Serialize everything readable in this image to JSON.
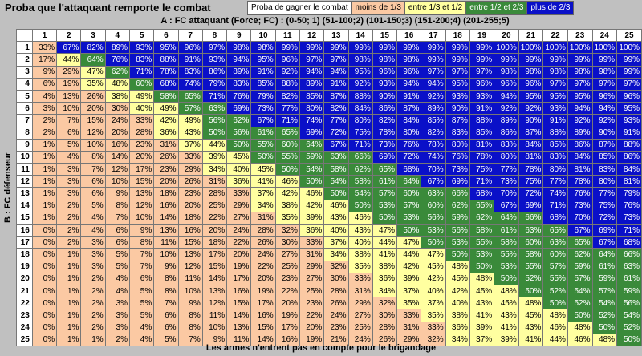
{
  "title": "Proba que l'attaquant remporte le combat",
  "legend": {
    "label": "Proba de gagner le combat",
    "items": [
      {
        "label": "moins de 1/3",
        "color": "#fbc9a3"
      },
      {
        "label": "entre 1/3 et 1/2",
        "color": "#ffffa0"
      },
      {
        "label": "entre 1/2 et 2/3",
        "color": "#3a8a3a"
      },
      {
        "label": "plus de 2/3",
        "color": "#0a10c8"
      }
    ]
  },
  "column_axis_title": "A : FC attaquant (Force; FC) : (0-50; 1) (51-100;2) (101-150;3) (151-200;4) (201-255;5)",
  "row_axis_title": "B : FC défenseur",
  "footer": "Les armes n'entrent pas en compte pour le brigandage",
  "watermark": "",
  "columns": [
    1,
    2,
    3,
    4,
    5,
    6,
    7,
    8,
    9,
    10,
    11,
    12,
    13,
    14,
    15,
    16,
    17,
    18,
    19,
    20,
    21,
    22,
    23,
    24,
    25
  ],
  "rows": [
    1,
    2,
    3,
    4,
    5,
    6,
    7,
    8,
    9,
    10,
    11,
    12,
    13,
    14,
    15,
    16,
    17,
    18,
    19,
    20,
    21,
    22,
    23,
    24,
    25
  ],
  "table": [
    [
      "33%",
      "67%",
      "82%",
      "89%",
      "93%",
      "95%",
      "96%",
      "97%",
      "98%",
      "98%",
      "99%",
      "99%",
      "99%",
      "99%",
      "99%",
      "99%",
      "99%",
      "99%",
      "99%",
      "100%",
      "100%",
      "100%",
      "100%",
      "100%",
      "100%"
    ],
    [
      "17%",
      "44%",
      "64%",
      "76%",
      "83%",
      "88%",
      "91%",
      "93%",
      "94%",
      "95%",
      "96%",
      "97%",
      "97%",
      "98%",
      "98%",
      "98%",
      "99%",
      "99%",
      "99%",
      "99%",
      "99%",
      "99%",
      "99%",
      "99%",
      "99%"
    ],
    [
      "9%",
      "29%",
      "47%",
      "62%",
      "71%",
      "78%",
      "83%",
      "86%",
      "89%",
      "91%",
      "92%",
      "94%",
      "94%",
      "95%",
      "96%",
      "96%",
      "97%",
      "97%",
      "97%",
      "98%",
      "98%",
      "98%",
      "98%",
      "98%",
      "99%"
    ],
    [
      "6%",
      "19%",
      "35%",
      "48%",
      "60%",
      "68%",
      "74%",
      "79%",
      "83%",
      "85%",
      "88%",
      "89%",
      "91%",
      "92%",
      "93%",
      "94%",
      "94%",
      "95%",
      "96%",
      "96%",
      "96%",
      "97%",
      "97%",
      "97%",
      "97%"
    ],
    [
      "4%",
      "13%",
      "26%",
      "38%",
      "49%",
      "58%",
      "65%",
      "71%",
      "76%",
      "79%",
      "82%",
      "85%",
      "87%",
      "88%",
      "90%",
      "91%",
      "92%",
      "93%",
      "93%",
      "94%",
      "95%",
      "95%",
      "95%",
      "96%",
      "96%"
    ],
    [
      "3%",
      "10%",
      "20%",
      "30%",
      "40%",
      "49%",
      "57%",
      "63%",
      "69%",
      "73%",
      "77%",
      "80%",
      "82%",
      "84%",
      "86%",
      "87%",
      "89%",
      "90%",
      "91%",
      "92%",
      "92%",
      "93%",
      "94%",
      "94%",
      "95%"
    ],
    [
      "2%",
      "7%",
      "15%",
      "24%",
      "33%",
      "42%",
      "49%",
      "56%",
      "62%",
      "67%",
      "71%",
      "74%",
      "77%",
      "80%",
      "82%",
      "84%",
      "85%",
      "87%",
      "88%",
      "89%",
      "90%",
      "91%",
      "92%",
      "92%",
      "93%"
    ],
    [
      "2%",
      "6%",
      "12%",
      "20%",
      "28%",
      "36%",
      "43%",
      "50%",
      "56%",
      "61%",
      "65%",
      "69%",
      "72%",
      "75%",
      "78%",
      "80%",
      "82%",
      "83%",
      "85%",
      "86%",
      "87%",
      "88%",
      "89%",
      "90%",
      "91%"
    ],
    [
      "1%",
      "5%",
      "10%",
      "16%",
      "23%",
      "31%",
      "37%",
      "44%",
      "50%",
      "55%",
      "60%",
      "64%",
      "67%",
      "71%",
      "73%",
      "76%",
      "78%",
      "80%",
      "81%",
      "83%",
      "84%",
      "85%",
      "86%",
      "87%",
      "88%"
    ],
    [
      "1%",
      "4%",
      "8%",
      "14%",
      "20%",
      "26%",
      "33%",
      "39%",
      "45%",
      "50%",
      "55%",
      "59%",
      "63%",
      "66%",
      "69%",
      "72%",
      "74%",
      "76%",
      "78%",
      "80%",
      "81%",
      "83%",
      "84%",
      "85%",
      "86%"
    ],
    [
      "1%",
      "3%",
      "7%",
      "12%",
      "17%",
      "23%",
      "29%",
      "34%",
      "40%",
      "45%",
      "50%",
      "54%",
      "58%",
      "62%",
      "65%",
      "68%",
      "70%",
      "73%",
      "75%",
      "77%",
      "78%",
      "80%",
      "81%",
      "83%",
      "84%"
    ],
    [
      "1%",
      "3%",
      "6%",
      "10%",
      "15%",
      "20%",
      "26%",
      "31%",
      "36%",
      "41%",
      "46%",
      "50%",
      "54%",
      "58%",
      "61%",
      "64%",
      "67%",
      "69%",
      "71%",
      "73%",
      "75%",
      "77%",
      "78%",
      "80%",
      "81%"
    ],
    [
      "1%",
      "3%",
      "6%",
      "9%",
      "13%",
      "18%",
      "23%",
      "28%",
      "33%",
      "37%",
      "42%",
      "46%",
      "50%",
      "54%",
      "57%",
      "60%",
      "63%",
      "66%",
      "68%",
      "70%",
      "72%",
      "74%",
      "76%",
      "77%",
      "79%"
    ],
    [
      "1%",
      "2%",
      "5%",
      "8%",
      "12%",
      "16%",
      "20%",
      "25%",
      "29%",
      "34%",
      "38%",
      "42%",
      "46%",
      "50%",
      "53%",
      "57%",
      "60%",
      "62%",
      "65%",
      "67%",
      "69%",
      "71%",
      "73%",
      "75%",
      "76%"
    ],
    [
      "1%",
      "2%",
      "4%",
      "7%",
      "10%",
      "14%",
      "18%",
      "22%",
      "27%",
      "31%",
      "35%",
      "39%",
      "43%",
      "46%",
      "50%",
      "53%",
      "56%",
      "59%",
      "62%",
      "64%",
      "66%",
      "68%",
      "70%",
      "72%",
      "73%"
    ],
    [
      "0%",
      "2%",
      "4%",
      "6%",
      "9%",
      "13%",
      "16%",
      "20%",
      "24%",
      "28%",
      "32%",
      "36%",
      "40%",
      "43%",
      "47%",
      "50%",
      "53%",
      "56%",
      "58%",
      "61%",
      "63%",
      "65%",
      "67%",
      "69%",
      "71%"
    ],
    [
      "0%",
      "2%",
      "3%",
      "6%",
      "8%",
      "11%",
      "15%",
      "18%",
      "22%",
      "26%",
      "30%",
      "33%",
      "37%",
      "40%",
      "44%",
      "47%",
      "50%",
      "53%",
      "55%",
      "58%",
      "60%",
      "63%",
      "65%",
      "67%",
      "68%"
    ],
    [
      "0%",
      "1%",
      "3%",
      "5%",
      "7%",
      "10%",
      "13%",
      "17%",
      "20%",
      "24%",
      "27%",
      "31%",
      "34%",
      "38%",
      "41%",
      "44%",
      "47%",
      "50%",
      "53%",
      "55%",
      "58%",
      "60%",
      "62%",
      "64%",
      "66%"
    ],
    [
      "0%",
      "1%",
      "3%",
      "5%",
      "7%",
      "9%",
      "12%",
      "15%",
      "19%",
      "22%",
      "25%",
      "29%",
      "32%",
      "35%",
      "38%",
      "42%",
      "45%",
      "48%",
      "50%",
      "53%",
      "55%",
      "57%",
      "59%",
      "61%",
      "63%"
    ],
    [
      "0%",
      "1%",
      "2%",
      "4%",
      "6%",
      "8%",
      "11%",
      "14%",
      "17%",
      "20%",
      "23%",
      "27%",
      "30%",
      "33%",
      "36%",
      "39%",
      "42%",
      "45%",
      "48%",
      "50%",
      "52%",
      "55%",
      "57%",
      "59%",
      "61%"
    ],
    [
      "0%",
      "1%",
      "2%",
      "4%",
      "5%",
      "8%",
      "10%",
      "13%",
      "16%",
      "19%",
      "22%",
      "25%",
      "28%",
      "31%",
      "34%",
      "37%",
      "40%",
      "42%",
      "45%",
      "48%",
      "50%",
      "52%",
      "54%",
      "57%",
      "59%"
    ],
    [
      "0%",
      "1%",
      "2%",
      "3%",
      "5%",
      "7%",
      "9%",
      "12%",
      "15%",
      "17%",
      "20%",
      "23%",
      "26%",
      "29%",
      "32%",
      "35%",
      "37%",
      "40%",
      "43%",
      "45%",
      "48%",
      "50%",
      "52%",
      "54%",
      "56%"
    ],
    [
      "0%",
      "1%",
      "2%",
      "3%",
      "5%",
      "6%",
      "8%",
      "11%",
      "14%",
      "16%",
      "19%",
      "22%",
      "24%",
      "27%",
      "30%",
      "33%",
      "35%",
      "38%",
      "41%",
      "43%",
      "45%",
      "48%",
      "50%",
      "52%",
      "54%"
    ],
    [
      "0%",
      "1%",
      "2%",
      "3%",
      "4%",
      "6%",
      "8%",
      "10%",
      "13%",
      "15%",
      "17%",
      "20%",
      "23%",
      "25%",
      "28%",
      "31%",
      "33%",
      "36%",
      "39%",
      "41%",
      "43%",
      "46%",
      "48%",
      "50%",
      "52%"
    ],
    [
      "0%",
      "1%",
      "1%",
      "2%",
      "4%",
      "5%",
      "7%",
      "9%",
      "11%",
      "14%",
      "16%",
      "19%",
      "21%",
      "24%",
      "26%",
      "29%",
      "32%",
      "34%",
      "37%",
      "39%",
      "41%",
      "44%",
      "46%",
      "48%",
      "50%"
    ]
  ]
}
